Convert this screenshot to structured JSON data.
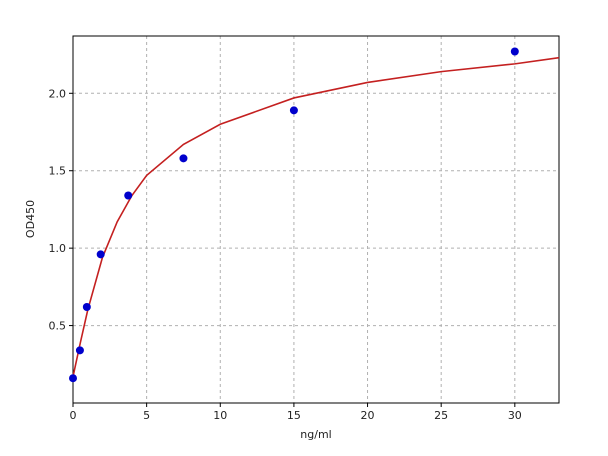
{
  "chart_data": {
    "type": "scatter",
    "xlabel": "ng/ml",
    "ylabel": "OD450",
    "xlim": [
      0,
      33
    ],
    "ylim": [
      0,
      2.37
    ],
    "xticks": [
      0,
      5,
      10,
      15,
      20,
      25,
      30
    ],
    "yticks": [
      0.5,
      {
        "value": 1,
        "label": "1.0"
      },
      1.5,
      {
        "value": 2,
        "label": "2.0"
      }
    ],
    "grid": true,
    "series": [
      {
        "type": "line",
        "color": "#c42020",
        "x": [
          0,
          0.5,
          1,
          2,
          3,
          4,
          5,
          7.5,
          10,
          15,
          20,
          25,
          30,
          33
        ],
        "values": [
          0.17,
          0.39,
          0.6,
          0.94,
          1.17,
          1.34,
          1.47,
          1.67,
          1.8,
          1.97,
          2.07,
          2.14,
          2.19,
          2.23
        ]
      },
      {
        "type": "scatter",
        "color": "#0000cc",
        "x": [
          0,
          0.47,
          0.94,
          1.88,
          3.75,
          7.5,
          15,
          30
        ],
        "values": [
          0.16,
          0.34,
          0.62,
          0.96,
          1.34,
          1.58,
          1.89,
          2.27
        ]
      }
    ]
  }
}
